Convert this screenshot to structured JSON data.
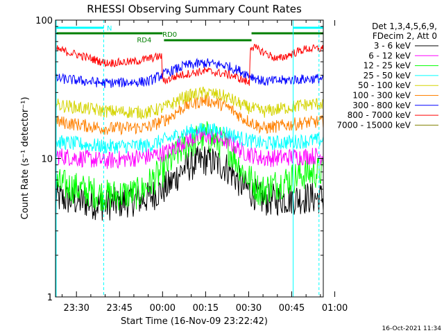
{
  "chart_data": {
    "type": "line",
    "title": "RHESSI Observing Summary Count Rates",
    "xlabel": "Start Time (16-Nov-09 23:22:42)",
    "ylabel": "Count Rate (s⁻¹ detector⁻¹)",
    "y_scale": "log",
    "ylim": [
      1,
      100
    ],
    "xlim_minutes": [
      -7.3,
      86
    ],
    "x_ticks": [
      "23:30",
      "23:45",
      "00:00",
      "00:15",
      "00:30",
      "00:45",
      "01:00"
    ],
    "x_ticks_minutes": [
      0,
      15,
      30,
      45,
      60,
      75,
      90
    ],
    "y_ticks": [
      "1",
      "10",
      "100"
    ],
    "y_ticks_values": [
      1,
      10,
      100
    ],
    "legend_header": [
      "Det 1,3,4,5,6,9,",
      "FDecim 2, Att 0"
    ],
    "legend_position": "top-right",
    "series": [
      {
        "name": "3 - 6 keV",
        "color": "#000000",
        "curve": [
          [
            -7.3,
            5.2
          ],
          [
            10,
            4.6
          ],
          [
            25,
            5.2
          ],
          [
            32,
            6.3
          ],
          [
            38,
            8.7
          ],
          [
            45,
            9.8
          ],
          [
            52,
            8.7
          ],
          [
            58,
            6.3
          ],
          [
            65,
            5.0
          ],
          [
            80,
            5.2
          ],
          [
            86,
            5.2
          ]
        ]
      },
      {
        "name": "6 - 12 keV",
        "color": "#ff00ff",
        "curve": [
          [
            -7.3,
            10.5
          ],
          [
            10,
            9.6
          ],
          [
            25,
            10.3
          ],
          [
            32,
            11.2
          ],
          [
            38,
            13.5
          ],
          [
            45,
            14.8
          ],
          [
            52,
            13.5
          ],
          [
            58,
            11.2
          ],
          [
            65,
            10.0
          ],
          [
            80,
            10.4
          ],
          [
            86,
            10.5
          ]
        ]
      },
      {
        "name": "12 - 25 keV",
        "color": "#00ff00",
        "curve": [
          [
            -7.3,
            6.6
          ],
          [
            10,
            5.4
          ],
          [
            22,
            5.6
          ],
          [
            30,
            8.0
          ],
          [
            38,
            12.5
          ],
          [
            45,
            14.5
          ],
          [
            52,
            12.5
          ],
          [
            58,
            8.0
          ],
          [
            64,
            5.8
          ],
          [
            80,
            7.8
          ],
          [
            86,
            8.0
          ]
        ]
      },
      {
        "name": "25 - 50 keV",
        "color": "#00ffff",
        "curve": [
          [
            -7.3,
            13.2
          ],
          [
            10,
            12.2
          ],
          [
            25,
            12.4
          ],
          [
            32,
            13.8
          ],
          [
            38,
            15.5
          ],
          [
            45,
            16.3
          ],
          [
            52,
            15.5
          ],
          [
            58,
            13.8
          ],
          [
            65,
            12.8
          ],
          [
            80,
            13.4
          ],
          [
            86,
            13.6
          ]
        ]
      },
      {
        "name": "50 - 100 keV",
        "color": "#d4d400",
        "curve": [
          [
            -7.3,
            24.5
          ],
          [
            10,
            22
          ],
          [
            25,
            21.5
          ],
          [
            32,
            24
          ],
          [
            38,
            28
          ],
          [
            45,
            30
          ],
          [
            52,
            28
          ],
          [
            58,
            24
          ],
          [
            65,
            21.8
          ],
          [
            80,
            24.5
          ],
          [
            86,
            25
          ]
        ]
      },
      {
        "name": "100 - 300 keV",
        "color": "#ff8000",
        "curve": [
          [
            -7.3,
            18.5
          ],
          [
            10,
            16.5
          ],
          [
            25,
            16.8
          ],
          [
            32,
            19.5
          ],
          [
            38,
            24
          ],
          [
            45,
            26.5
          ],
          [
            52,
            24
          ],
          [
            58,
            19.5
          ],
          [
            65,
            16.5
          ],
          [
            80,
            18.2
          ],
          [
            86,
            18.5
          ]
        ]
      },
      {
        "name": "300 - 800 keV",
        "color": "#0000ff",
        "curve": [
          [
            -7.3,
            38
          ],
          [
            10,
            35
          ],
          [
            25,
            36
          ],
          [
            32,
            42
          ],
          [
            38,
            47
          ],
          [
            45,
            49
          ],
          [
            52,
            47
          ],
          [
            58,
            42
          ],
          [
            65,
            36
          ],
          [
            80,
            37.5
          ],
          [
            86,
            38
          ]
        ]
      },
      {
        "name": "800 - 7000 keV",
        "color": "#ff0000",
        "curve": [
          [
            -7.3,
            62
          ],
          [
            10,
            49
          ],
          [
            20,
            50
          ],
          [
            29.7,
            55
          ],
          [
            30,
            36
          ],
          [
            36,
            40
          ],
          [
            45,
            43
          ],
          [
            54,
            40
          ],
          [
            60.3,
            35
          ],
          [
            60.6,
            65
          ],
          [
            70,
            52
          ],
          [
            80,
            62
          ],
          [
            86,
            62
          ]
        ]
      },
      {
        "name": "7000 - 15000 keV",
        "color": "#808000",
        "curve": []
      }
    ],
    "annotations": [
      {
        "text": "N",
        "color": "#00ffff"
      },
      {
        "text": "RD4",
        "color": "#007f00"
      },
      {
        "text": "RD0",
        "color": "#007f00"
      }
    ],
    "timestamp": "16-Oct-2021 11:34"
  }
}
